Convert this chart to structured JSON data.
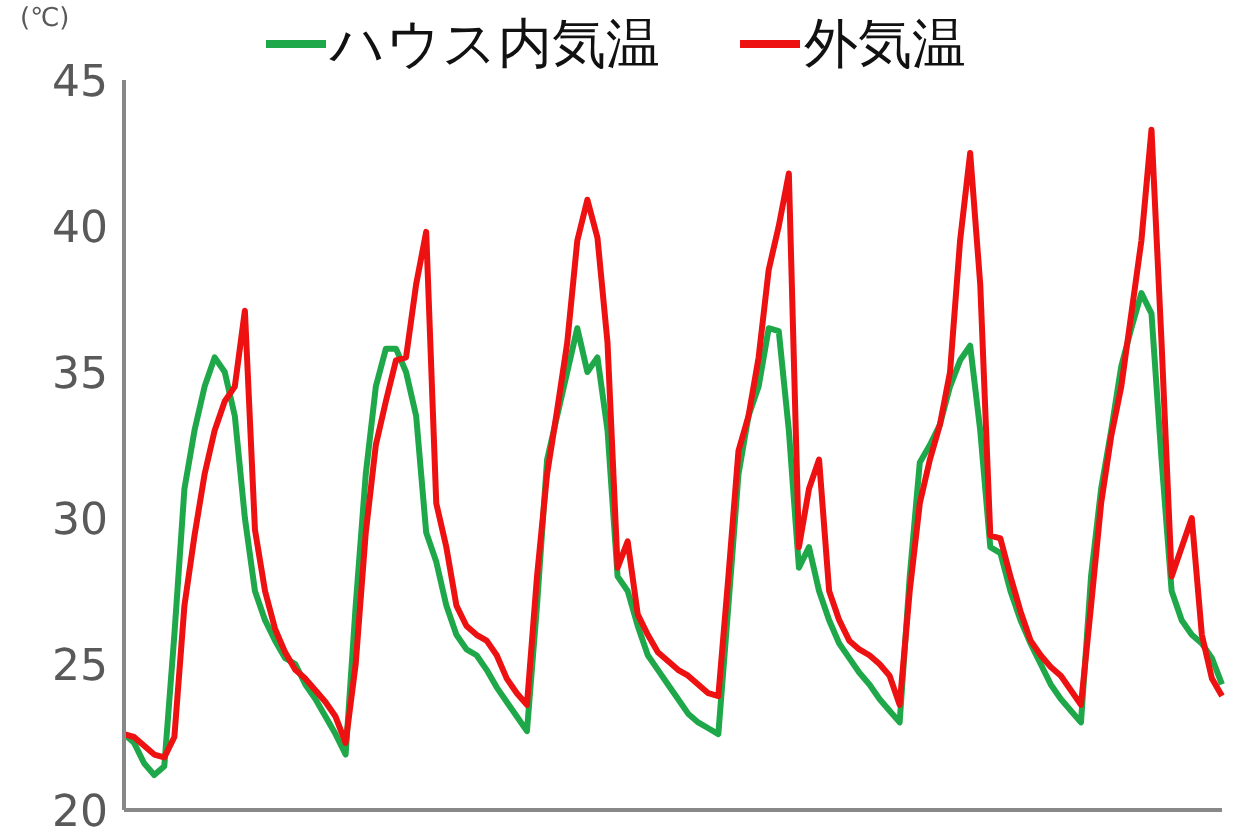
{
  "chart_data": {
    "type": "line",
    "ylabel": "(℃)",
    "categories": [
      null,
      null,
      null,
      null,
      null,
      null,
      null,
      null,
      null,
      null,
      null,
      null,
      null,
      null,
      null,
      null,
      null,
      null,
      null,
      null,
      null,
      null,
      null,
      null,
      null,
      null,
      null,
      null,
      null,
      null,
      null,
      null,
      null,
      null,
      null,
      null,
      null,
      null,
      null,
      null,
      null,
      null,
      null,
      null,
      null,
      null,
      null,
      null,
      null,
      null,
      null,
      null,
      null,
      null,
      null,
      null,
      null,
      null,
      null,
      null,
      null,
      null,
      null,
      null,
      null,
      null,
      null,
      null,
      null,
      null,
      null,
      null,
      null,
      null,
      null,
      null,
      null,
      null,
      null,
      null,
      null,
      null,
      null,
      null,
      null,
      null,
      null,
      null,
      null,
      null,
      null,
      null,
      null,
      null,
      null,
      null,
      null,
      null,
      null,
      null,
      null,
      null,
      null,
      null,
      null,
      null,
      null,
      null,
      null,
      null
    ],
    "series": [
      {
        "name": "ハウス内気温",
        "color": "#1fa84a",
        "values": [
          22.6,
          22.3,
          21.6,
          21.2,
          21.5,
          26,
          31,
          33,
          34.5,
          35.5,
          35,
          33.5,
          30,
          27.5,
          26.5,
          25.8,
          25.2,
          25,
          24.3,
          23.8,
          23.2,
          22.6,
          21.9,
          27,
          31.5,
          34.5,
          35.8,
          35.8,
          35,
          33.5,
          29.5,
          28.5,
          27,
          26,
          25.5,
          25.3,
          24.8,
          24.2,
          23.7,
          23.2,
          22.7,
          27,
          32,
          33.5,
          35,
          36.5,
          35,
          35.5,
          33,
          28,
          27.5,
          26.3,
          25.3,
          24.8,
          24.3,
          23.8,
          23.3,
          23,
          22.8,
          22.6,
          27,
          31.5,
          33.5,
          34.5,
          36.5,
          36.4,
          33,
          28.3,
          29,
          27.5,
          26.5,
          25.7,
          25.2,
          24.7,
          24.3,
          23.8,
          23.4,
          23,
          28,
          31.9,
          32.5,
          33.2,
          34.5,
          35.4,
          35.9,
          33,
          29,
          28.8,
          27.5,
          26.5,
          25.7,
          25,
          24.3,
          23.8,
          23.4,
          23,
          28,
          31,
          33,
          35.2,
          36.5,
          37.7,
          37,
          32,
          27.5,
          26.5,
          26,
          25.7,
          25.2,
          24.3
        ]
      },
      {
        "name": "外気温",
        "color": "#ee1111",
        "values": [
          22.6,
          22.5,
          22.2,
          21.9,
          21.8,
          22.5,
          27,
          29.4,
          31.5,
          33,
          34,
          34.5,
          37.1,
          29.6,
          27.5,
          26.2,
          25.4,
          24.8,
          24.5,
          24.1,
          23.7,
          23.2,
          22.3,
          25,
          29.5,
          32.5,
          34,
          35.4,
          35.5,
          38,
          39.8,
          30.5,
          29,
          27,
          26.3,
          26,
          25.8,
          25.3,
          24.5,
          24,
          23.6,
          28,
          31.5,
          33.7,
          36,
          39.5,
          40.9,
          39.6,
          36,
          28.3,
          29.2,
          26.7,
          26,
          25.4,
          25.1,
          24.8,
          24.6,
          24.3,
          24,
          23.9,
          28,
          32.3,
          33.5,
          35.5,
          38.5,
          40,
          41.8,
          29,
          31,
          32,
          27.5,
          26.5,
          25.8,
          25.5,
          25.3,
          25,
          24.6,
          23.6,
          27.5,
          30.5,
          32,
          33.2,
          35,
          39.5,
          42.5,
          38,
          29.4,
          29.3,
          28,
          26.8,
          25.8,
          25.3,
          24.9,
          24.6,
          24.1,
          23.6,
          27,
          30.5,
          32.8,
          34.5,
          37,
          39.5,
          43.3,
          36,
          28,
          29,
          30,
          26,
          24.5,
          23.9
        ]
      }
    ],
    "ylim": [
      20,
      45
    ],
    "yticks": [
      20,
      25,
      30,
      35,
      40,
      45
    ],
    "grid": false,
    "legend": "top",
    "tick_labels": "y",
    "marker": "none",
    "line_style": "solid"
  }
}
